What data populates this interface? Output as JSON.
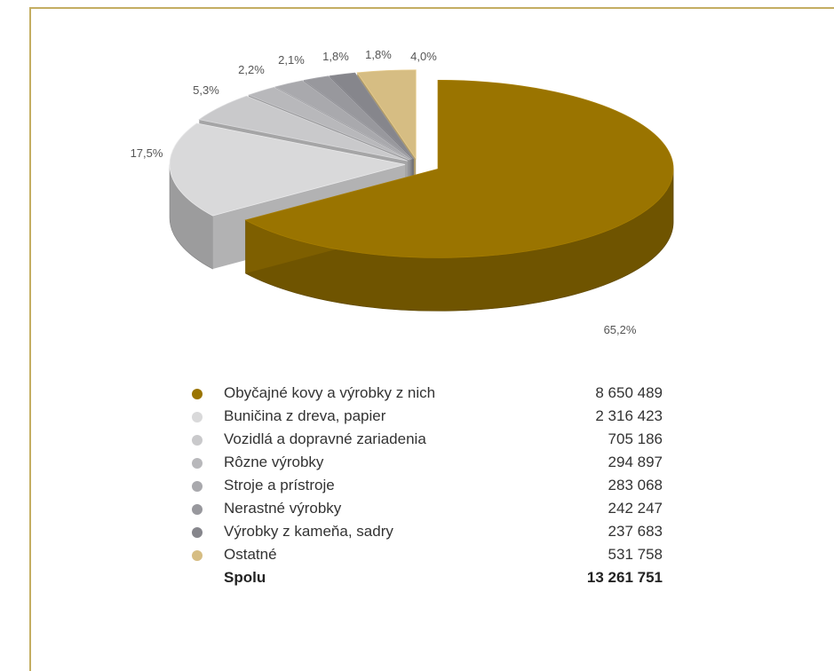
{
  "chart_data": {
    "type": "pie",
    "title": "",
    "three_d": true,
    "exploded_slice": "Obyčajné kovy a výrobky z nich",
    "slices": [
      {
        "label": "Obyčajné kovy a výrobky z nich",
        "value": 8650489,
        "percent": 65.2,
        "percent_label": "65,2%",
        "value_label": "8 650 489",
        "color": "#9a7400"
      },
      {
        "label": "Buničina z dreva, papier",
        "value": 2316423,
        "percent": 17.5,
        "percent_label": "17,5%",
        "value_label": "2 316 423",
        "color": "#d9d9da"
      },
      {
        "label": "Vozidlá a dopravné zariadenia",
        "value": 705186,
        "percent": 5.3,
        "percent_label": "5,3%",
        "value_label": "705 186",
        "color": "#c9c9cb"
      },
      {
        "label": "Rôzne výrobky",
        "value": 294897,
        "percent": 2.2,
        "percent_label": "2,2%",
        "value_label": "294 897",
        "color": "#b8b8bb"
      },
      {
        "label": "Stroje a prístroje",
        "value": 283068,
        "percent": 2.1,
        "percent_label": "2,1%",
        "value_label": "283 068",
        "color": "#a9a9ad"
      },
      {
        "label": "Nerastné výrobky",
        "value": 242247,
        "percent": 1.8,
        "percent_label": "1,8%",
        "value_label": "242 247",
        "color": "#98989d"
      },
      {
        "label": "Výrobky z kameňa, sadry",
        "value": 237683,
        "percent": 1.8,
        "percent_label": "1,8%",
        "value_label": "237 683",
        "color": "#86868c"
      },
      {
        "label": "Ostatné",
        "value": 531758,
        "percent": 4.0,
        "percent_label": "4,0%",
        "value_label": "531 758",
        "color": "#d6bd83"
      }
    ],
    "total": {
      "label": "Spolu",
      "value": 13261751,
      "value_label": "13 261 751"
    },
    "legend_position": "bottom"
  }
}
